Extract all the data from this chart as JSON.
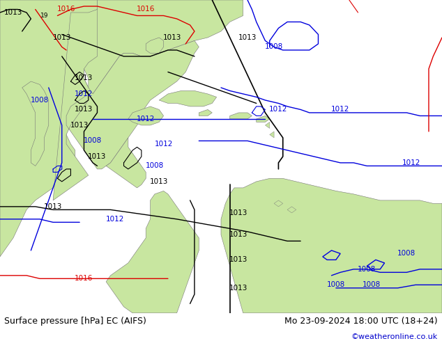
{
  "title_left": "Surface pressure [hPa] EC (AIFS)",
  "title_right": "Mo 23-09-2024 18:00 UTC (18+24)",
  "copyright": "©weatheronline.co.uk",
  "bg_map_color": "#d0d0d0",
  "land_color": "#c8e6a0",
  "fig_width": 6.34,
  "fig_height": 4.9,
  "dpi": 100,
  "footer_bg": "#ffffff",
  "footer_text_color": "#000000",
  "footer_fontsize": 9.0,
  "copyright_color": "#0000cc",
  "copyright_fontsize": 8.0
}
